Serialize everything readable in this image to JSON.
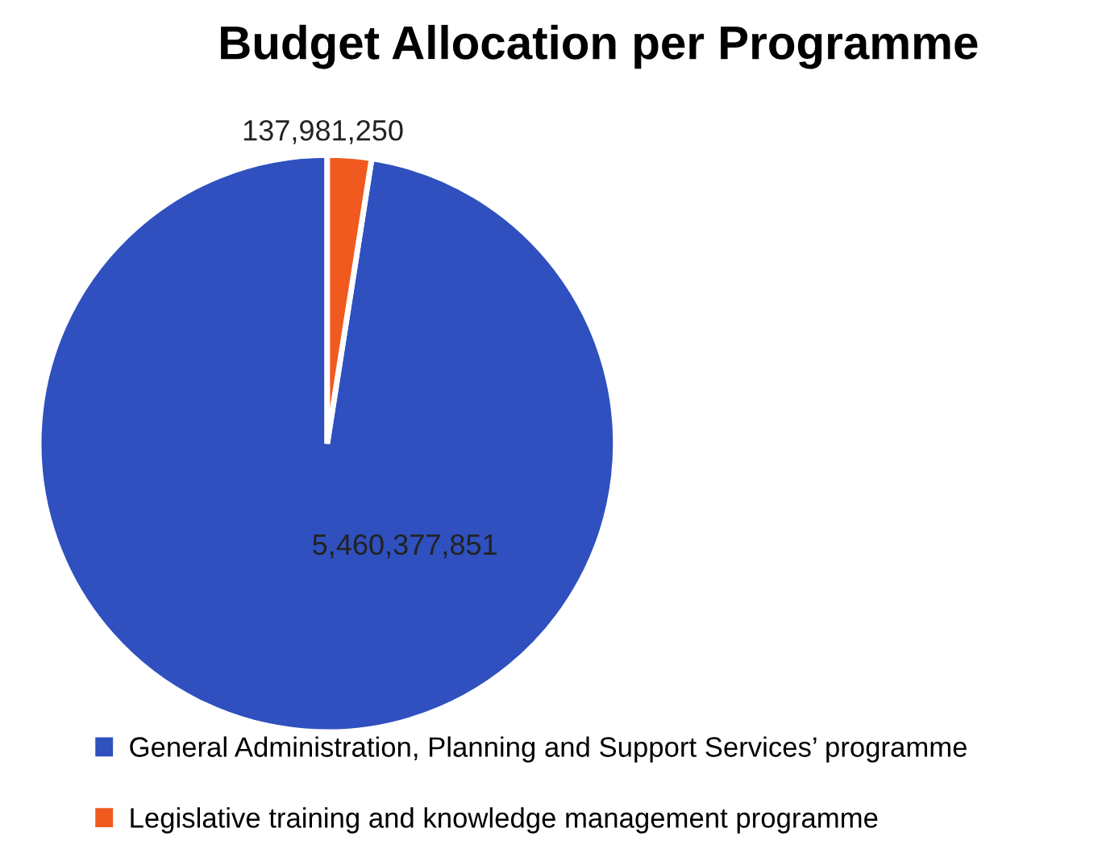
{
  "chart_data": {
    "type": "pie",
    "title": "Budget Allocation per Programme",
    "categories": [
      "General Administration, Planning and Support Services’ programme",
      "Legislative training and knowledge management programme"
    ],
    "values": [
      5460377851,
      137981250
    ],
    "value_labels": [
      "5,460,377,851",
      "137,981,250"
    ],
    "colors": [
      "#2f50be",
      "#f05a1e"
    ],
    "legend": "bottom"
  }
}
